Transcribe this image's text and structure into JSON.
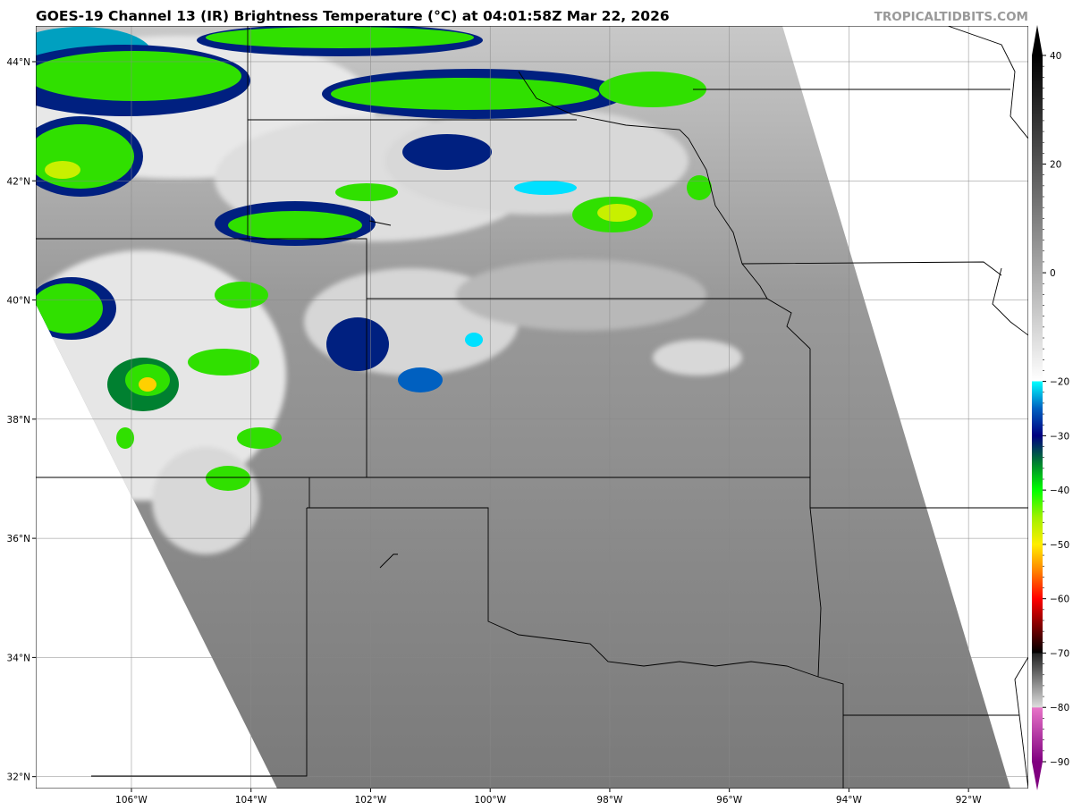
{
  "header": {
    "title": "GOES-19 Channel 13 (IR) Brightness Temperature (°C) at 04:01:58Z Mar 22, 2026",
    "brand": "TROPICALTIDBITS.COM"
  },
  "map": {
    "lon_range": [
      -107.6,
      -91.0
    ],
    "lat_range": [
      31.8,
      44.6
    ],
    "lon_ticks": [
      {
        "value": -106,
        "label": "106°W"
      },
      {
        "value": -104,
        "label": "104°W"
      },
      {
        "value": -102,
        "label": "102°W"
      },
      {
        "value": -100,
        "label": "100°W"
      },
      {
        "value": -98,
        "label": "98°W"
      },
      {
        "value": -96,
        "label": "96°W"
      },
      {
        "value": -94,
        "label": "94°W"
      },
      {
        "value": -92,
        "label": "92°W"
      }
    ],
    "lat_ticks": [
      {
        "value": 44,
        "label": "44°N"
      },
      {
        "value": 42,
        "label": "42°N"
      },
      {
        "value": 40,
        "label": "40°N"
      },
      {
        "value": 38,
        "label": "38°N"
      },
      {
        "value": 36,
        "label": "36°N"
      },
      {
        "value": 34,
        "label": "34°N"
      },
      {
        "value": 32,
        "label": "32°N"
      }
    ],
    "grid": true
  },
  "colorbar": {
    "range": [
      -90,
      40
    ],
    "ticks": [
      {
        "value": 40,
        "label": "40"
      },
      {
        "value": 20,
        "label": "20"
      },
      {
        "value": 0,
        "label": "0"
      },
      {
        "value": -20,
        "label": "−20"
      },
      {
        "value": -30,
        "label": "−30"
      },
      {
        "value": -40,
        "label": "−40"
      },
      {
        "value": -50,
        "label": "−50"
      },
      {
        "value": -60,
        "label": "−60"
      },
      {
        "value": -70,
        "label": "−70"
      },
      {
        "value": -80,
        "label": "−80"
      },
      {
        "value": -90,
        "label": "−90"
      }
    ],
    "stops": [
      {
        "value": -90,
        "color": "#800080"
      },
      {
        "value": -80.01,
        "color": "#e874c8"
      },
      {
        "value": -80,
        "color": "#dddddd"
      },
      {
        "value": -70.01,
        "color": "#222222"
      },
      {
        "value": -70,
        "color": "#000000"
      },
      {
        "value": -60,
        "color": "#ff0000"
      },
      {
        "value": -55,
        "color": "#ff8000"
      },
      {
        "value": -50,
        "color": "#ffee00"
      },
      {
        "value": -45,
        "color": "#a0f000"
      },
      {
        "value": -40,
        "color": "#00ff00"
      },
      {
        "value": -35,
        "color": "#008030"
      },
      {
        "value": -30,
        "color": "#000080"
      },
      {
        "value": -25,
        "color": "#0060c0"
      },
      {
        "value": -20.01,
        "color": "#00ffff"
      },
      {
        "value": -20,
        "color": "#ffffff"
      },
      {
        "value": 40,
        "color": "#000000"
      }
    ]
  }
}
